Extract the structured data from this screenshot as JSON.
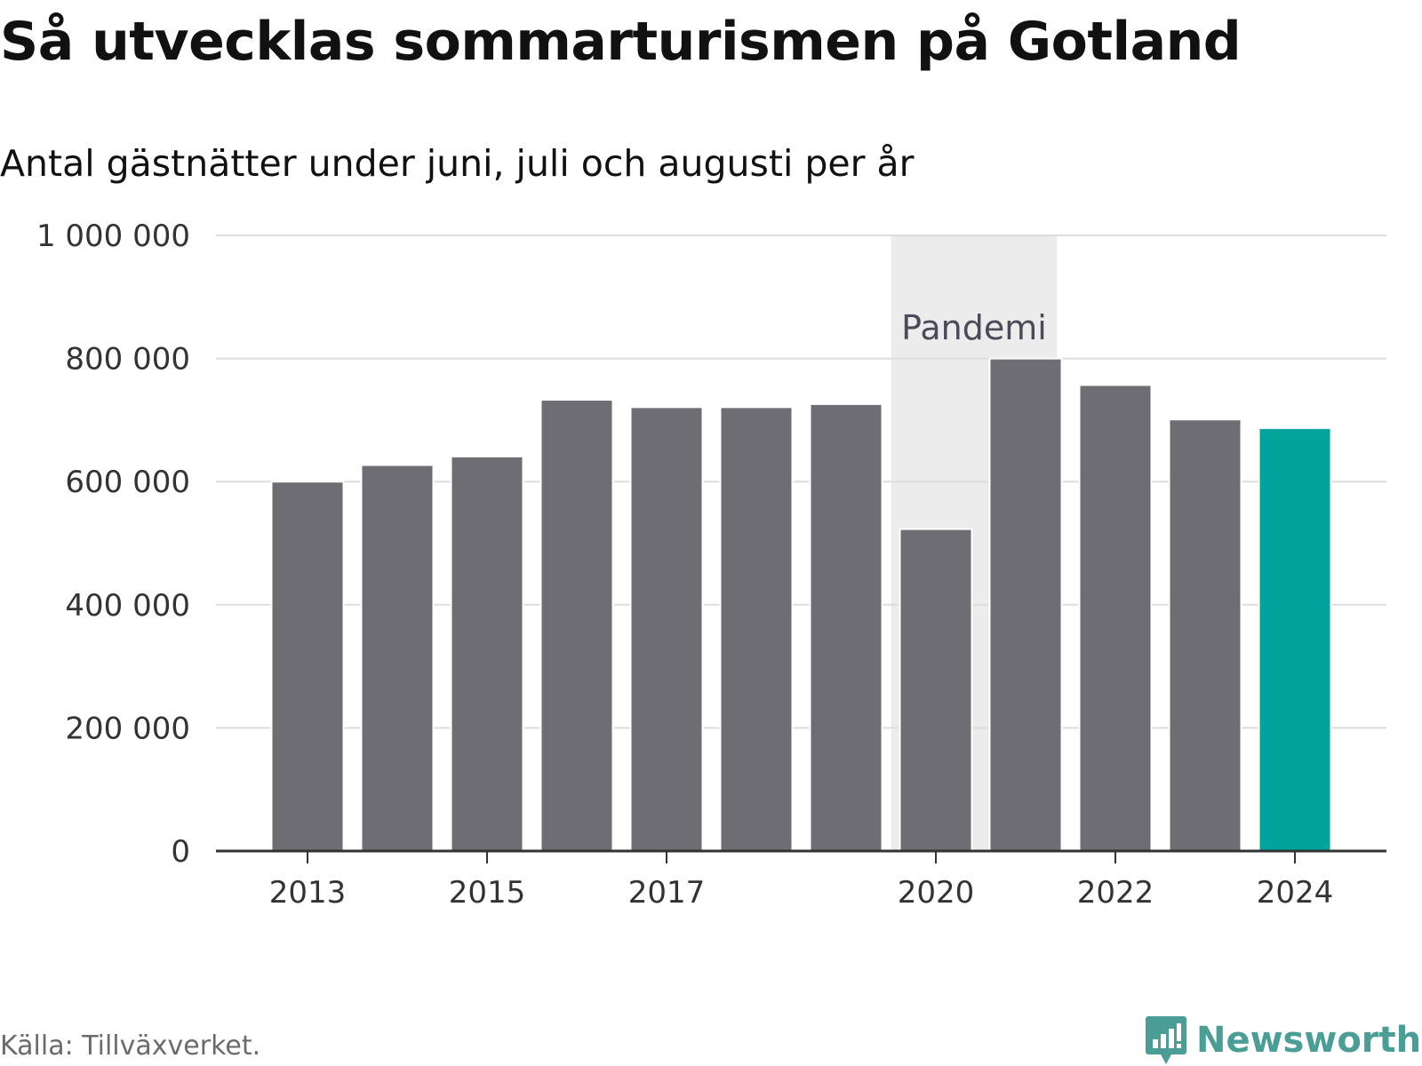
{
  "title": "Så utvecklas sommarturismen på Gotland",
  "subtitle": "Antal gästnätter under juni, juli och augusti per år",
  "source": "Källa: Tillväxverket.",
  "brand": "Newsworthy",
  "colors": {
    "bar": "#6e6d73",
    "highlight": "#00a49a",
    "band": "#ececec",
    "grid": "#dddddd",
    "axis": "#333333",
    "text": "#333333",
    "annotation": "#4a4a58",
    "brand": "#4a9e96"
  },
  "chart_data": {
    "type": "bar",
    "categories": [
      "2013",
      "2014",
      "2015",
      "2016",
      "2017",
      "2018",
      "2019",
      "2020",
      "2021",
      "2022",
      "2023",
      "2024"
    ],
    "values": [
      600000,
      627000,
      641000,
      733000,
      721000,
      721000,
      726000,
      523000,
      800000,
      757000,
      701000,
      687000
    ],
    "highlight_category": "2024",
    "ylim": [
      0,
      1000000
    ],
    "yticks": [
      0,
      200000,
      400000,
      600000,
      800000,
      1000000
    ],
    "ytick_labels": [
      "0",
      "200 000",
      "400 000",
      "600 000",
      "800 000",
      "1 000 000"
    ],
    "xtick_labels": [
      "2013",
      "2015",
      "2017",
      "2020",
      "2022",
      "2024"
    ],
    "grid": true,
    "annotation": {
      "label": "Pandemi",
      "from": "2020",
      "to": "2021"
    }
  }
}
